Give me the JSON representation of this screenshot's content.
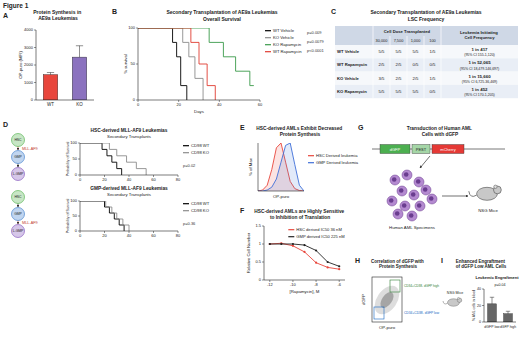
{
  "figure_title": "Figure 1",
  "panel_labels": [
    "A",
    "B",
    "C",
    "D",
    "E",
    "F",
    "G",
    "H",
    "I"
  ],
  "chart_data": [
    {
      "type": "bar",
      "title": "Protein Synthesis in AE9a Leukemias",
      "y_label": "OP-puro (MFI)",
      "categories": [
        "WT",
        "KO"
      ],
      "values": [
        1450,
        2450
      ],
      "errors": [
        120,
        650
      ],
      "colors": [
        "#e8463c",
        "#8b72bf"
      ],
      "ylim": [
        0,
        4000
      ],
      "yticks": [
        0,
        1000,
        2000,
        3000,
        4000
      ]
    },
    {
      "type": "step",
      "title": "Secondary Transplantation of AE9a Leukemias",
      "subtitle": "Overall Survival",
      "x_label": "Days",
      "y_label": "% survival",
      "xlim": [
        0,
        60
      ],
      "xticks": [
        0,
        20,
        40,
        60
      ],
      "ylim": [
        0,
        100
      ],
      "yticks": [
        0,
        50,
        100
      ],
      "legend": "right",
      "series": [
        {
          "name": "WT Vehicle",
          "color": "#000000",
          "x": [
            0,
            17,
            19,
            21,
            24
          ],
          "values": [
            100,
            80,
            60,
            20,
            0
          ]
        },
        {
          "name": "KO Vehicle",
          "color": "#8c8c8c",
          "x": [
            0,
            22,
            25,
            28,
            32
          ],
          "values": [
            100,
            80,
            60,
            30,
            0
          ]
        },
        {
          "name": "KO Rapamycin",
          "color": "#3a9a4a",
          "x": [
            0,
            35,
            42,
            48,
            55
          ],
          "values": [
            100,
            80,
            60,
            40,
            20
          ]
        },
        {
          "name": "WT Rapamycin",
          "color": "#e03c31",
          "x": [
            0,
            26,
            30,
            34,
            38
          ],
          "values": [
            100,
            80,
            50,
            20,
            0
          ]
        }
      ],
      "annotations": [
        "p=0.009",
        "p=0.0079",
        "p<0.0001"
      ]
    },
    {
      "type": "step",
      "title": "HSC-derived MLL-AF9 Leukemias",
      "subtitle": "Secondary Transplants",
      "y_label": "Probability of Survival",
      "xlim": [
        0,
        80
      ],
      "xticks": [
        0,
        20,
        40,
        60,
        80
      ],
      "ylim": [
        0,
        100
      ],
      "yticks": [
        0,
        50,
        100
      ],
      "legend": "right",
      "series": [
        {
          "name": "CD98 WT",
          "color": "#000000",
          "x": [
            0,
            18,
            22,
            26,
            30,
            34
          ],
          "values": [
            100,
            80,
            60,
            40,
            20,
            0
          ]
        },
        {
          "name": "CD98 KO",
          "color": "#8c8c8c",
          "x": [
            0,
            24,
            30,
            38,
            46,
            54
          ],
          "values": [
            100,
            80,
            60,
            40,
            20,
            0
          ]
        }
      ],
      "annotations": [
        "p=0.02"
      ]
    },
    {
      "type": "step",
      "title": "GMP-derived MLL-AF9 Leukemias",
      "subtitle": "Secondary Transplants",
      "y_label": "Probability of Survival",
      "xlim": [
        0,
        80
      ],
      "xticks": [
        0,
        20,
        40,
        60,
        80
      ],
      "ylim": [
        0,
        100
      ],
      "yticks": [
        0,
        50,
        100
      ],
      "legend": "right",
      "series": [
        {
          "name": "CD98 WT",
          "color": "#000000",
          "x": [
            0,
            20,
            24,
            28,
            32,
            36
          ],
          "values": [
            100,
            80,
            60,
            40,
            20,
            0
          ]
        },
        {
          "name": "CD98 KO",
          "color": "#8c8c8c",
          "x": [
            0,
            21,
            26,
            30,
            35,
            40
          ],
          "values": [
            100,
            80,
            60,
            40,
            20,
            0
          ]
        }
      ],
      "annotations": [
        "p=0.36"
      ]
    },
    {
      "type": "line",
      "title": "HSC-derived AMLs Exhibit Decreased Protein Synthesis",
      "x_label": "OP-puro",
      "y_label": "% of Max",
      "x": [
        0,
        10,
        20,
        30,
        40,
        50,
        60,
        70,
        80,
        90,
        100
      ],
      "xlim": [
        0,
        100
      ],
      "ylim": [
        0,
        100
      ],
      "tick_labels": false,
      "legend": "right",
      "series": [
        {
          "name": "HSC Derived leukemia",
          "color": "#e8463c",
          "values": [
            0,
            2,
            12,
            45,
            90,
            100,
            60,
            20,
            5,
            1,
            0
          ]
        },
        {
          "name": "GMP Derived leukemia",
          "color": "#3f6fd8",
          "values": [
            0,
            0,
            2,
            8,
            25,
            60,
            95,
            100,
            55,
            12,
            0
          ]
        }
      ]
    },
    {
      "type": "line",
      "title": "HSC-derived AMLs are Highly Sensitive to Inhibition of Translation",
      "x_label": "[Rapamycin], M",
      "y_label": "Relative Cell Number",
      "x": [
        -12,
        -11,
        -10,
        -9,
        -8,
        -7,
        -6
      ],
      "xlim": [
        -12.5,
        -5.5
      ],
      "xticks": [
        -12,
        -10,
        -8,
        -6
      ],
      "ylim": [
        0,
        1.5
      ],
      "yticks": [
        0,
        0.5,
        1,
        1.5
      ],
      "marker": "circle",
      "legend": "upper right",
      "series": [
        {
          "name": "HSC derived IC50 36 nM",
          "color": "#e8463c",
          "values": [
            1.0,
            1.02,
            0.95,
            0.78,
            0.48,
            0.35,
            0.3
          ]
        },
        {
          "name": "GMP derived IC50 225 nM",
          "color": "#222222",
          "values": [
            1.0,
            1.0,
            1.0,
            0.97,
            0.82,
            0.5,
            0.38
          ]
        }
      ]
    },
    {
      "type": "bar",
      "title": "Enhanced Engraftment of dGFP Low AML Cells",
      "subtitle": "Leukemic Engraftment",
      "y_label": "% AML cells in blood",
      "categories": [
        "dGFP low",
        "dGFP high"
      ],
      "values": [
        22,
        10
      ],
      "errors": [
        8,
        3
      ],
      "color": "#666666",
      "ylim": [
        0,
        40
      ],
      "yticks": [
        0,
        20,
        40
      ],
      "annotations": [
        "p=0.04",
        "NSG Mice"
      ]
    }
  ],
  "table_c": {
    "title": "Secondary Transplantation of AE9a Leukemias",
    "subtitle": "LSC Frequency",
    "dose_header": "Cell Dose Transplanted",
    "doses": [
      "30,000",
      "7,500",
      "1,000",
      "100"
    ],
    "frequency_header": "Leukemia Initiating Cell Frequency",
    "rows": [
      {
        "name": "WT Vehicle",
        "counts": [
          "5/5",
          "5/5",
          "5/5",
          "1/5"
        ],
        "frequency": "1 in 417",
        "ci": "(95% CI 155-1,120)"
      },
      {
        "name": "WT Rapamycin",
        "counts": [
          "2/5",
          "2/5",
          "0/5",
          "0/5"
        ],
        "frequency": "1 in 52,065",
        "ci": "(95% CI 18,479-146,697)"
      },
      {
        "name": "KO Vehicle",
        "counts": [
          "3/5",
          "2/5",
          "2/5",
          "1/5"
        ],
        "frequency": "1 in 15,660",
        "ci": "(95% CI 6,725-36,469)"
      },
      {
        "name": "KO Rapamycin",
        "counts": [
          "5/5",
          "5/5",
          "5/5",
          "0/5"
        ],
        "frequency": "1 in 452",
        "ci": "(95% CI 170-1,205)"
      }
    ]
  },
  "diagram_d": {
    "top": {
      "nodes": [
        "HSC",
        "GMP",
        "L-GMP"
      ],
      "oncogene": "MLL-AF9"
    },
    "bottom": {
      "nodes": [
        "HSC",
        "GMP",
        "L-GMP"
      ],
      "oncogene": "MLL-AF9"
    }
  },
  "diagram_g": {
    "title": "Transduction of Human AML Cells with dGFP",
    "construct": [
      "dGFP",
      "PEST",
      "mCherry"
    ],
    "specimens": "Human AML Specimens",
    "mice": "NSG Mice"
  },
  "panel_h": {
    "title": "Correlation of dGFP with Protein Synthesis",
    "x_label": "OP-puro",
    "y_label": "dGFP",
    "gates": [
      "CD34+CD38- dGFP high",
      "CD34+CD38- dGFP low"
    ]
  }
}
